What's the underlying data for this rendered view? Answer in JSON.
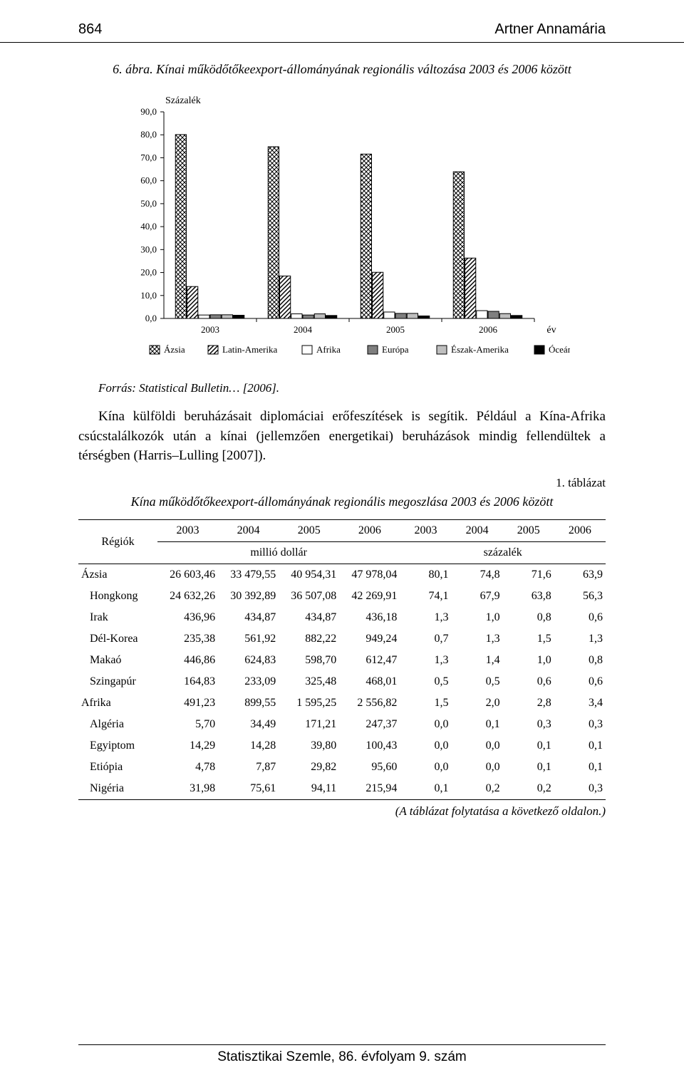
{
  "header": {
    "pageno": "864",
    "author": "Artner Annamária"
  },
  "figure": {
    "label": "6. ábra.",
    "title": "Kínai működőtőkeexport-állományának regionális változása 2003 és 2006 között",
    "ylabel": "Százalék",
    "xlabel": "év",
    "source": "Forrás: Statistical Bulletin… [2006].",
    "type": "grouped-bar",
    "ylim": [
      0,
      90
    ],
    "ytick_step": 10,
    "ytick_labels": [
      "0,0",
      "10,0",
      "20,0",
      "30,0",
      "40,0",
      "50,0",
      "60,0",
      "70,0",
      "80,0",
      "90,0"
    ],
    "label_fontsize": 14,
    "tick_fontsize": 13,
    "legend_fontsize": 13,
    "background_color": "#ffffff",
    "grid_color": "#000000",
    "bar_border_color": "#000000",
    "bar_group_gap": 0.25,
    "categories": [
      "2003",
      "2004",
      "2005",
      "2006"
    ],
    "series": [
      {
        "name": "Ázsia",
        "pattern": "crosshatch",
        "fill": "#ffffff",
        "values": [
          80.1,
          74.8,
          71.6,
          63.9
        ]
      },
      {
        "name": "Latin-Amerika",
        "pattern": "diagonal",
        "fill": "#ffffff",
        "values": [
          13.9,
          18.5,
          20.1,
          26.3
        ]
      },
      {
        "name": "Afrika",
        "pattern": "none",
        "fill": "#ffffff",
        "values": [
          1.5,
          2.0,
          2.8,
          3.4
        ]
      },
      {
        "name": "Európa",
        "pattern": "none",
        "fill": "#7f7f7f",
        "values": [
          1.6,
          1.5,
          2.2,
          3.1
        ]
      },
      {
        "name": "Észak-Amerika",
        "pattern": "none",
        "fill": "#bfbfbf",
        "values": [
          1.6,
          2.0,
          2.2,
          2.1
        ]
      },
      {
        "name": "Óceánia",
        "pattern": "none",
        "fill": "#000000",
        "values": [
          1.4,
          1.3,
          1.1,
          1.3
        ]
      }
    ]
  },
  "paragraph": "Kína külföldi beruházásait diplomáciai erőfeszítések is segítik. Például a Kína-Afrika csúcstalálkozók után a kínai (jellemzően energetikai) beruházások mindig fellendültek a térségben (Harris–Lulling [2007]).",
  "table": {
    "label": "1. táblázat",
    "title": "Kína működőtőkeexport-állományának regionális megoszlása 2003 és 2006 között",
    "col_region": "Régiók",
    "group1_label": "millió dollár",
    "group2_label": "százalék",
    "years": [
      "2003",
      "2004",
      "2005",
      "2006",
      "2003",
      "2004",
      "2005",
      "2006"
    ],
    "footnote": "(A táblázat folytatása a következő oldalon.)",
    "rows": [
      {
        "name": "Ázsia",
        "indent": false,
        "vals": [
          "26 603,46",
          "33 479,55",
          "40 954,31",
          "47 978,04",
          "80,1",
          "74,8",
          "71,6",
          "63,9"
        ]
      },
      {
        "name": "Hongkong",
        "indent": true,
        "vals": [
          "24 632,26",
          "30 392,89",
          "36 507,08",
          "42 269,91",
          "74,1",
          "67,9",
          "63,8",
          "56,3"
        ]
      },
      {
        "name": "Irak",
        "indent": true,
        "vals": [
          "436,96",
          "434,87",
          "434,87",
          "436,18",
          "1,3",
          "1,0",
          "0,8",
          "0,6"
        ]
      },
      {
        "name": "Dél-Korea",
        "indent": true,
        "vals": [
          "235,38",
          "561,92",
          "882,22",
          "949,24",
          "0,7",
          "1,3",
          "1,5",
          "1,3"
        ]
      },
      {
        "name": "Makaó",
        "indent": true,
        "vals": [
          "446,86",
          "624,83",
          "598,70",
          "612,47",
          "1,3",
          "1,4",
          "1,0",
          "0,8"
        ]
      },
      {
        "name": "Szingapúr",
        "indent": true,
        "vals": [
          "164,83",
          "233,09",
          "325,48",
          "468,01",
          "0,5",
          "0,5",
          "0,6",
          "0,6"
        ]
      },
      {
        "name": "Afrika",
        "indent": false,
        "vals": [
          "491,23",
          "899,55",
          "1 595,25",
          "2 556,82",
          "1,5",
          "2,0",
          "2,8",
          "3,4"
        ]
      },
      {
        "name": "Algéria",
        "indent": true,
        "vals": [
          "5,70",
          "34,49",
          "171,21",
          "247,37",
          "0,0",
          "0,1",
          "0,3",
          "0,3"
        ]
      },
      {
        "name": "Egyiptom",
        "indent": true,
        "vals": [
          "14,29",
          "14,28",
          "39,80",
          "100,43",
          "0,0",
          "0,0",
          "0,1",
          "0,1"
        ]
      },
      {
        "name": "Etiópia",
        "indent": true,
        "vals": [
          "4,78",
          "7,87",
          "29,82",
          "95,60",
          "0,0",
          "0,0",
          "0,1",
          "0,1"
        ]
      },
      {
        "name": "Nigéria",
        "indent": true,
        "vals": [
          "31,98",
          "75,61",
          "94,11",
          "215,94",
          "0,1",
          "0,2",
          "0,2",
          "0,3"
        ]
      }
    ]
  },
  "footer": "Statisztikai Szemle, 86. évfolyam 9. szám"
}
